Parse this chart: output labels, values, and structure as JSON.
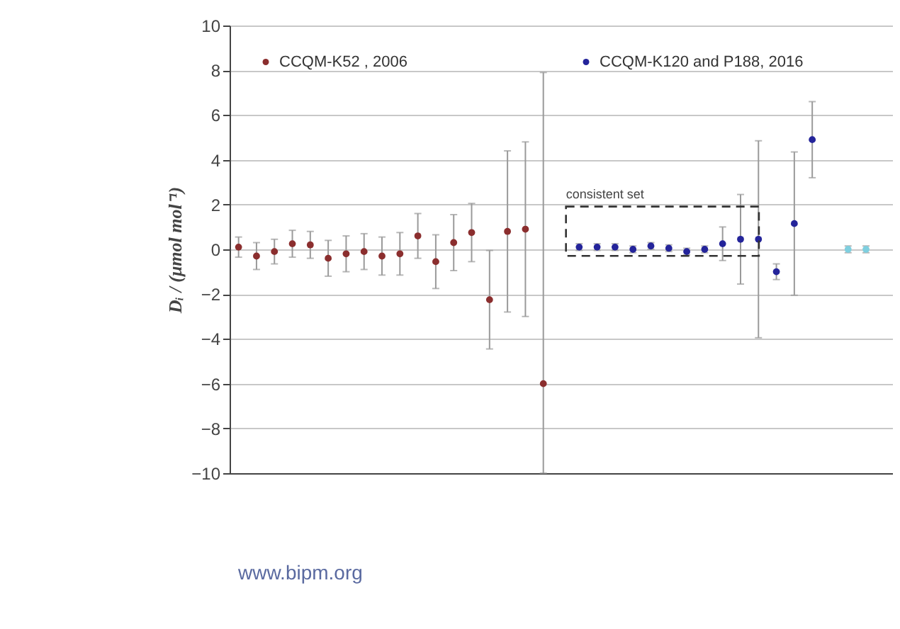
{
  "chart_data": {
    "type": "scatter",
    "ylabel": "Dᵢ / (μmol mol⁻¹)",
    "categories": [
      null,
      null,
      null,
      null,
      null,
      null,
      null,
      null,
      null,
      null,
      null,
      null,
      null,
      null,
      null,
      null,
      null,
      null,
      null,
      null,
      null,
      null,
      null,
      null,
      null,
      null,
      null,
      null,
      null,
      null,
      null,
      null,
      null,
      null,
      null,
      null,
      null
    ],
    "series": [
      {
        "name": "CCQM-K52 , 2006",
        "color": "#8b2e2e",
        "values": [
          0.1,
          -0.3,
          -0.1,
          0.25,
          0.2,
          -0.4,
          -0.2,
          -0.1,
          -0.3,
          -0.2,
          0.6,
          -0.55,
          0.3,
          0.75,
          -2.25,
          0.8,
          0.9,
          -6,
          null,
          null,
          null,
          null,
          null,
          null,
          null,
          null,
          null,
          null,
          null,
          null,
          null,
          null,
          null,
          null,
          null,
          null,
          null
        ],
        "errors": [
          0.45,
          0.6,
          0.55,
          0.6,
          0.6,
          0.8,
          0.8,
          0.8,
          0.85,
          0.95,
          1.0,
          1.2,
          1.25,
          1.3,
          2.2,
          3.6,
          3.9,
          [
            -10,
            7.9
          ],
          null,
          null,
          null,
          null,
          null,
          null,
          null,
          null,
          null,
          null,
          null,
          null,
          null,
          null,
          null,
          null,
          null,
          null,
          null
        ]
      },
      {
        "name": "CCQM-K120 and P188, 2016",
        "color": "#24249a",
        "values": [
          null,
          null,
          null,
          null,
          null,
          null,
          null,
          null,
          null,
          null,
          null,
          null,
          null,
          null,
          null,
          null,
          null,
          null,
          null,
          0.1,
          0.1,
          0.1,
          0,
          0.15,
          0.05,
          -0.1,
          0,
          0.25,
          0.45,
          0.45,
          -1.0,
          1.15,
          4.9,
          null,
          0,
          0,
          null
        ],
        "errors": [
          null,
          null,
          null,
          null,
          null,
          null,
          null,
          null,
          null,
          null,
          null,
          null,
          null,
          null,
          null,
          null,
          null,
          null,
          null,
          0.15,
          0.15,
          0.15,
          0.15,
          0.15,
          0.15,
          0.15,
          0.15,
          0.75,
          2.0,
          4.4,
          0.35,
          3.2,
          1.7,
          null,
          0.15,
          0.15,
          null
        ],
        "colors": [
          null,
          null,
          null,
          null,
          null,
          null,
          null,
          null,
          null,
          null,
          null,
          null,
          null,
          null,
          null,
          null,
          null,
          null,
          null,
          "#24249a",
          "#24249a",
          "#24249a",
          "#24249a",
          "#24249a",
          "#24249a",
          "#24249a",
          "#24249a",
          "#24249a",
          "#24249a",
          "#24249a",
          "#24249a",
          "#24249a",
          "#24249a",
          null,
          "#7fcfdf",
          "#7fcfdf",
          null
        ]
      }
    ],
    "ylim": [
      -10,
      10
    ],
    "yticks": [
      -10,
      -8,
      -6,
      -4,
      -2,
      0,
      2,
      4,
      6,
      8,
      10
    ],
    "grid": "y",
    "legend": "top",
    "marker": "circle",
    "annotations": [
      "consistent set",
      "www.bipm.org"
    ]
  }
}
